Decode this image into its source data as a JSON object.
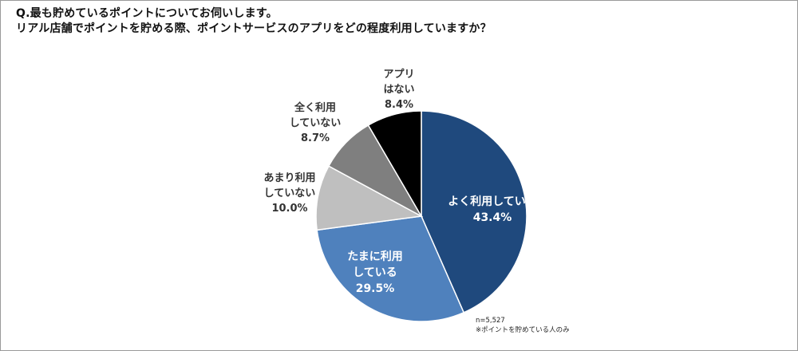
{
  "question": {
    "line1": "Q.最も貯めているポイントについてお伺いします。",
    "line2": "リアル店舗でポイントを貯める際、ポイントサービスのアプリをどの程度利用していますか？"
  },
  "chart_data": {
    "type": "pie",
    "start_angle_deg": 0,
    "direction": "clockwise",
    "slices": [
      {
        "name_lines": [
          "よく利用している"
        ],
        "value": 43.4,
        "label": "43.4%",
        "color": "#1f497d"
      },
      {
        "name_lines": [
          "たまに利用",
          "している"
        ],
        "value": 29.5,
        "label": "29.5%",
        "color": "#4f81bd"
      },
      {
        "name_lines": [
          "あまり利用",
          "していない"
        ],
        "value": 10.0,
        "label": "10.0%",
        "color": "#bfbfbf"
      },
      {
        "name_lines": [
          "全く利用",
          "していない"
        ],
        "value": 8.7,
        "label": "8.7%",
        "color": "#7f7f7f"
      },
      {
        "name_lines": [
          "アプリ",
          "はない"
        ],
        "value": 8.4,
        "label": "8.4%",
        "color": "#000000"
      }
    ]
  },
  "footnote": {
    "sample": "n=5,527",
    "note": "※ポイントを貯めている人のみ"
  }
}
